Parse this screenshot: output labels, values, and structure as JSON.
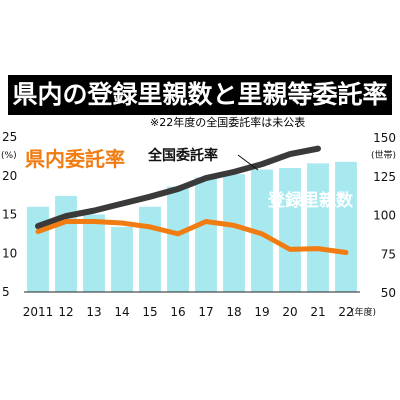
{
  "title": "県内の登録里親数と里親等委託率",
  "note": "※22年度の全国委託率は未公表",
  "chart_data": {
    "type": "bar+line",
    "categories": [
      "2011",
      "12",
      "13",
      "14",
      "15",
      "16",
      "17",
      "18",
      "19",
      "20",
      "21",
      "22"
    ],
    "x_suffix": "(年度)",
    "left_axis": {
      "unit": "(%)",
      "ticks": [
        5,
        10,
        15,
        20,
        25
      ],
      "range": [
        5,
        25
      ]
    },
    "right_axis": {
      "unit": "(世帯)",
      "ticks": [
        50,
        75,
        100,
        125,
        150
      ],
      "range": [
        50,
        150
      ]
    },
    "bars": {
      "name": "登録里親数",
      "axis": "right",
      "color": "#a8e8ef",
      "values": [
        105,
        112,
        100,
        92,
        105,
        118,
        124,
        126,
        129,
        130,
        133,
        134
      ]
    },
    "series": [
      {
        "name": "全国委託率",
        "axis": "left",
        "color": "#3a3a3a",
        "values": [
          13.5,
          14.8,
          15.5,
          16.4,
          17.3,
          18.3,
          19.7,
          20.5,
          21.5,
          22.8,
          23.5,
          null
        ]
      },
      {
        "name": "県内委託率",
        "axis": "left",
        "color": "#f07c12",
        "values": [
          12.8,
          14.1,
          14.1,
          13.9,
          13.4,
          12.5,
          14.1,
          13.6,
          12.5,
          10.5,
          10.6,
          10.1
        ]
      }
    ],
    "grid": false
  }
}
